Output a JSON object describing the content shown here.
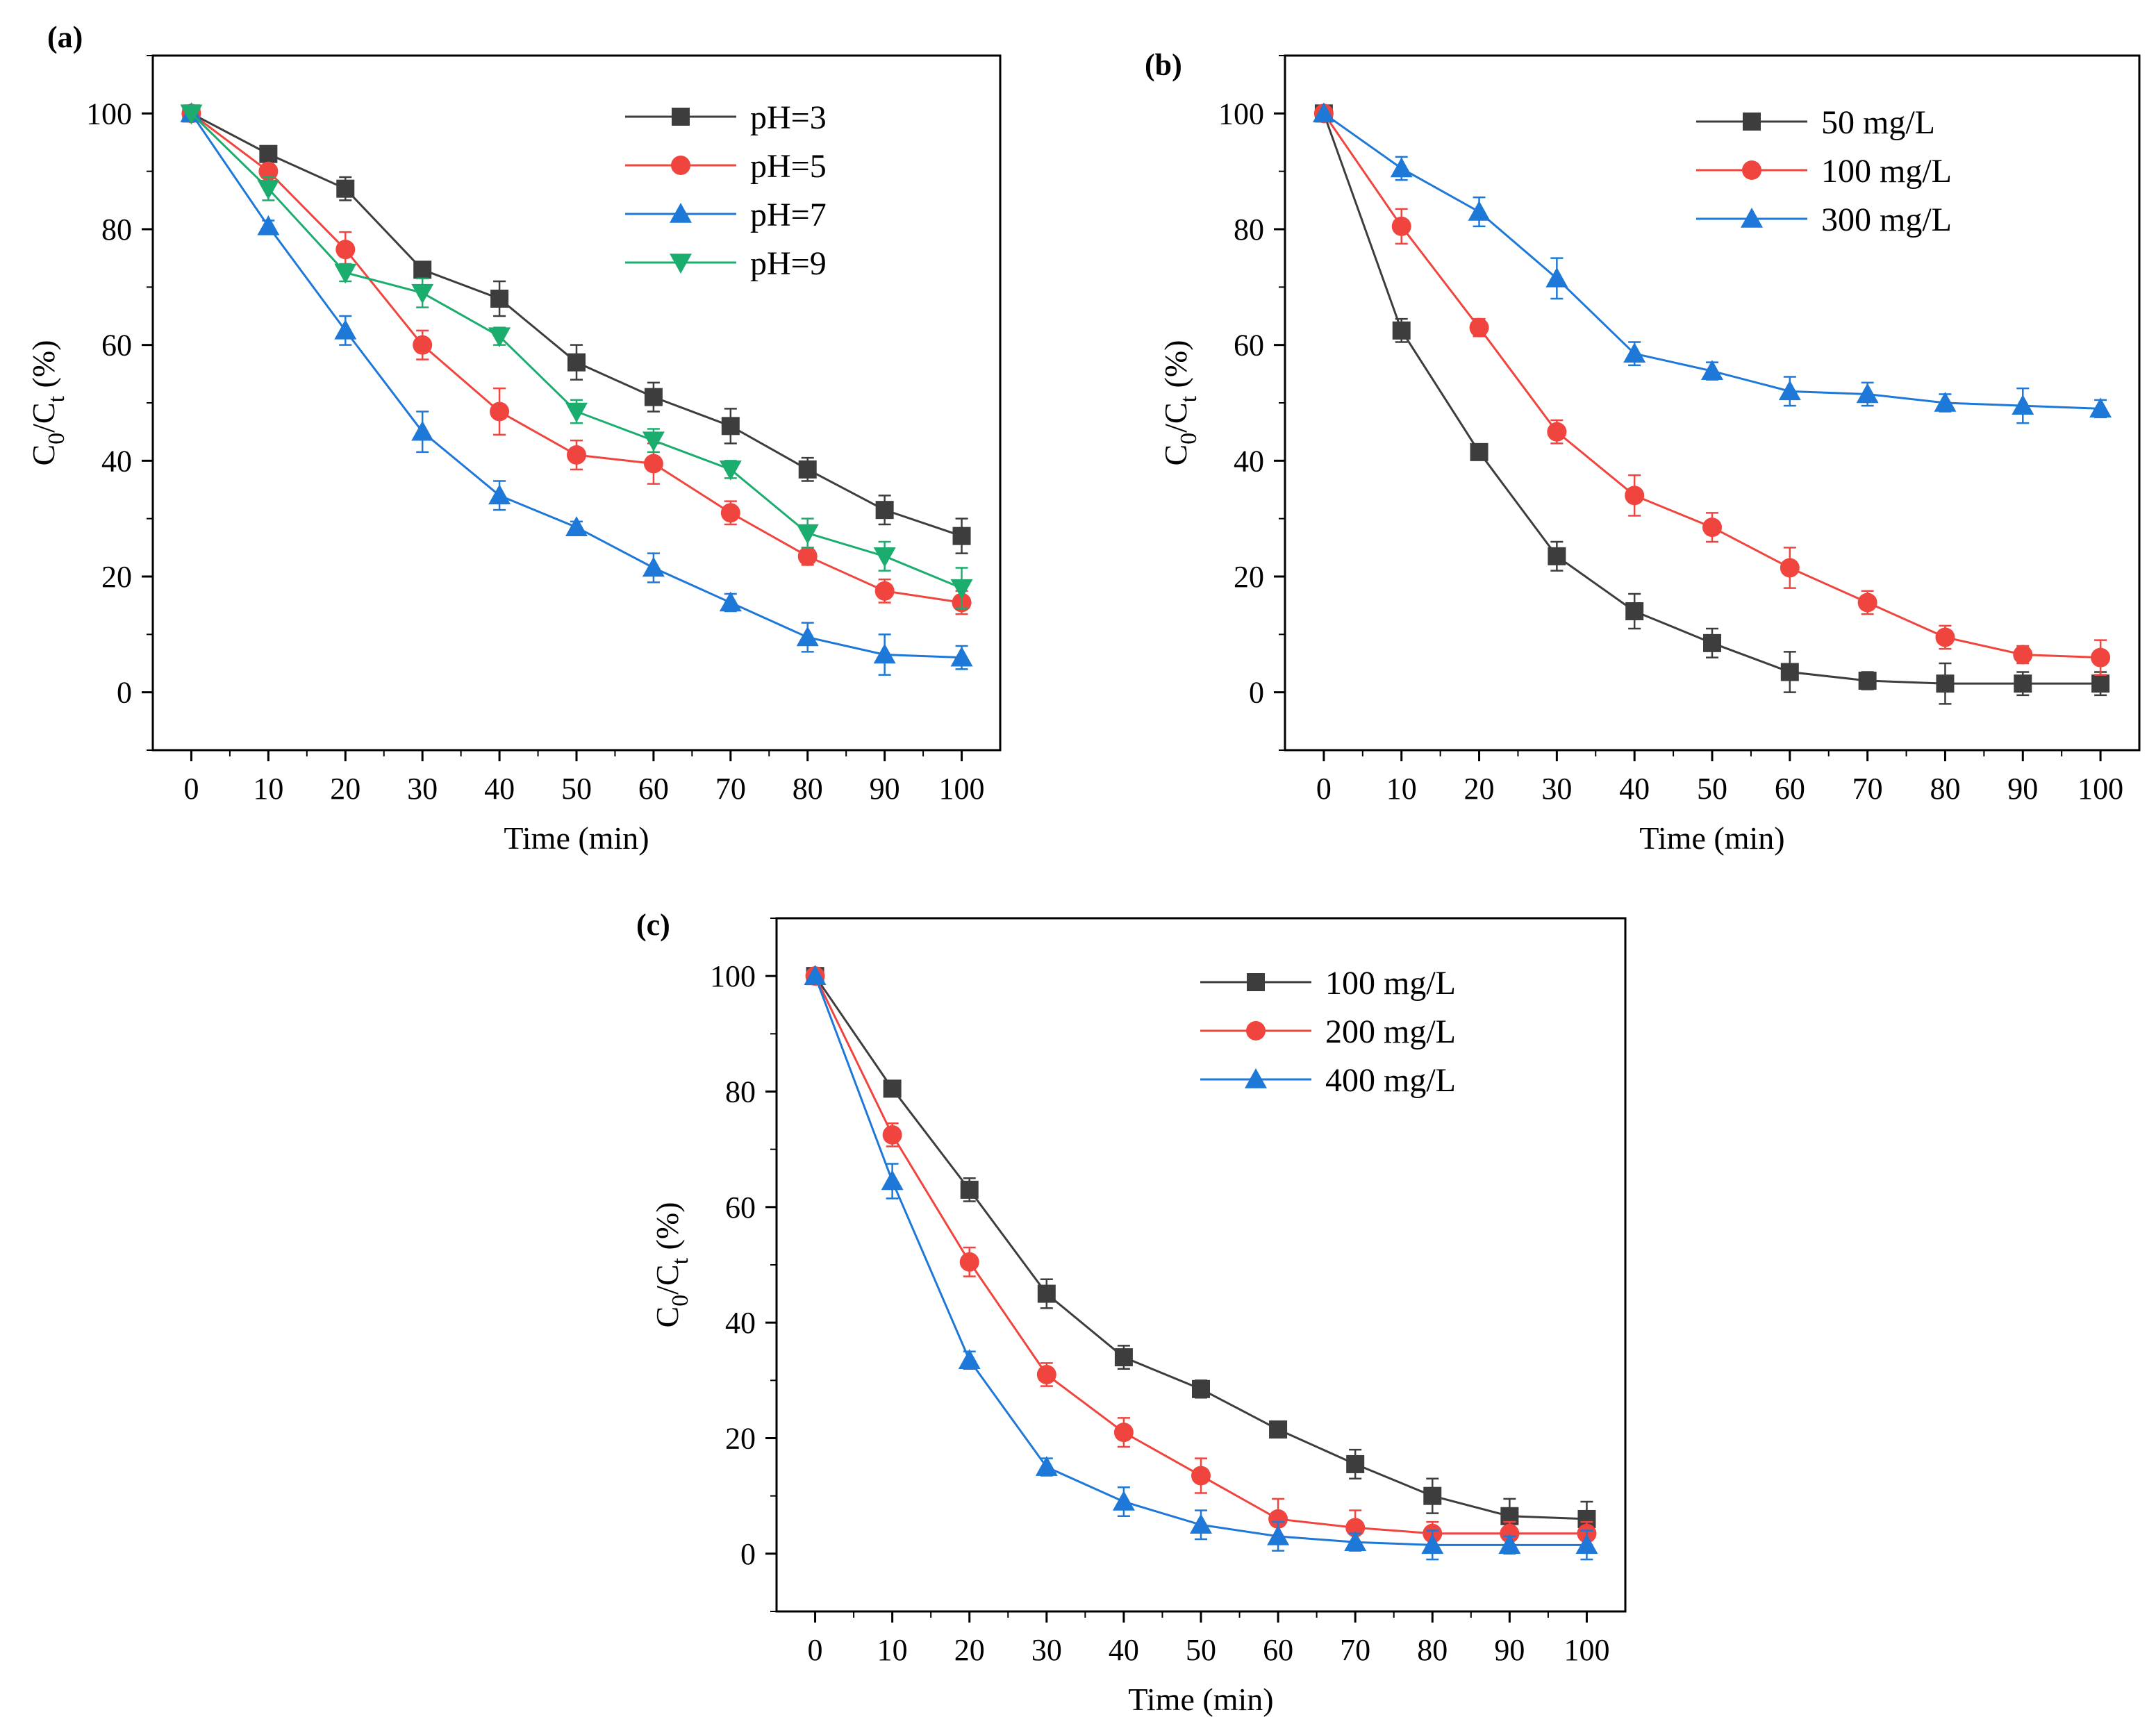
{
  "colors": {
    "black": "#3d3d3d",
    "red": "#f0443e",
    "blue": "#1e78d7",
    "green": "#1bad6e"
  },
  "chart_data": [
    {
      "panel_label": "(a)",
      "type": "line",
      "xlabel": "Time (min)",
      "ylabel_main": "C",
      "ylabel_sub1": "0",
      "ylabel_mid": "/C",
      "ylabel_sub2": "t",
      "ylabel_tail": " (%)",
      "x": [
        0,
        10,
        20,
        30,
        40,
        50,
        60,
        70,
        80,
        90,
        100
      ],
      "xlim": [
        -5,
        105
      ],
      "ylim": [
        -10,
        110
      ],
      "xticks": [
        "0",
        "10",
        "20",
        "30",
        "40",
        "50",
        "60",
        "70",
        "80",
        "90",
        "100"
      ],
      "yticks": [
        "0",
        "20",
        "40",
        "60",
        "80",
        "100"
      ],
      "legend_position": "top-right",
      "series": [
        {
          "name": "pH=3",
          "color": "black",
          "marker": "square",
          "values": [
            100,
            93,
            87,
            73,
            68,
            57,
            51,
            46,
            38.5,
            31.5,
            27
          ],
          "errors": [
            0,
            1,
            2,
            1,
            3,
            3,
            2.5,
            3,
            2,
            2.5,
            3
          ]
        },
        {
          "name": "pH=5",
          "color": "red",
          "marker": "circle",
          "values": [
            100,
            90,
            76.5,
            60,
            48.5,
            41,
            39.5,
            31,
            23.5,
            17.5,
            15.5
          ],
          "errors": [
            0,
            1,
            3,
            2.5,
            4,
            2.5,
            3.5,
            2,
            1.5,
            2,
            2
          ]
        },
        {
          "name": "pH=7",
          "color": "blue",
          "marker": "triangle-up",
          "values": [
            100,
            80.5,
            62.5,
            45,
            34,
            28.5,
            21.5,
            15.5,
            9.5,
            6.5,
            6
          ],
          "errors": [
            0,
            1,
            2.5,
            3.5,
            2.5,
            1,
            2.5,
            1.5,
            2.5,
            3.5,
            2
          ]
        },
        {
          "name": "pH=9",
          "color": "green",
          "marker": "triangle-down",
          "values": [
            100,
            87,
            72.5,
            69,
            61.5,
            48.5,
            43.5,
            38.5,
            27.5,
            23.5,
            18
          ],
          "errors": [
            0,
            2,
            1.5,
            2.5,
            1.5,
            2,
            2,
            1.5,
            2.5,
            2.5,
            3.5
          ]
        }
      ]
    },
    {
      "panel_label": "(b)",
      "type": "line",
      "xlabel": "Time (min)",
      "ylabel_main": "C",
      "ylabel_sub1": "0",
      "ylabel_mid": "/C",
      "ylabel_sub2": "t",
      "ylabel_tail": " (%)",
      "x": [
        0,
        10,
        20,
        30,
        40,
        50,
        60,
        70,
        80,
        90,
        100
      ],
      "xlim": [
        -5,
        105
      ],
      "ylim": [
        -10,
        110
      ],
      "xticks": [
        "0",
        "10",
        "20",
        "30",
        "40",
        "50",
        "60",
        "70",
        "80",
        "90",
        "100"
      ],
      "yticks": [
        "0",
        "20",
        "40",
        "60",
        "80",
        "100"
      ],
      "legend_position": "top-right",
      "series": [
        {
          "name": "50 mg/L",
          "color": "black",
          "marker": "square",
          "values": [
            100,
            62.5,
            41.5,
            23.5,
            14,
            8.5,
            3.5,
            2,
            1.5,
            1.5,
            1.5
          ],
          "errors": [
            0,
            2,
            1,
            2.5,
            3,
            2.5,
            3.5,
            1.5,
            3.5,
            2,
            2
          ]
        },
        {
          "name": "100 mg/L",
          "color": "red",
          "marker": "circle",
          "values": [
            100,
            80.5,
            63,
            45,
            34,
            28.5,
            21.5,
            15.5,
            9.5,
            6.5,
            6
          ],
          "errors": [
            0,
            3,
            1.5,
            2,
            3.5,
            2.5,
            3.5,
            2,
            2,
            1.5,
            3
          ]
        },
        {
          "name": "300 mg/L",
          "color": "blue",
          "marker": "triangle-up",
          "values": [
            100,
            90.5,
            83,
            71.5,
            58.5,
            55.5,
            52,
            51.5,
            50,
            49.5,
            49
          ],
          "errors": [
            0,
            2,
            2.5,
            3.5,
            2,
            1.5,
            2.5,
            2,
            1.5,
            3,
            1.5
          ]
        }
      ]
    },
    {
      "panel_label": "(c)",
      "type": "line",
      "xlabel": "Time (min)",
      "ylabel_main": "C",
      "ylabel_sub1": "0",
      "ylabel_mid": "/C",
      "ylabel_sub2": "t",
      "ylabel_tail": " (%)",
      "x": [
        0,
        10,
        20,
        30,
        40,
        50,
        60,
        70,
        80,
        90,
        100
      ],
      "xlim": [
        -5,
        105
      ],
      "ylim": [
        -10,
        110
      ],
      "xticks": [
        "0",
        "10",
        "20",
        "30",
        "40",
        "50",
        "60",
        "70",
        "80",
        "90",
        "100"
      ],
      "yticks": [
        "0",
        "20",
        "40",
        "60",
        "80",
        "100"
      ],
      "legend_position": "top-right",
      "series": [
        {
          "name": "100 mg/L",
          "color": "black",
          "marker": "square",
          "values": [
            100,
            80.5,
            63,
            45,
            34,
            28.5,
            21.5,
            15.5,
            10,
            6.5,
            6
          ],
          "errors": [
            0,
            1,
            2,
            2.5,
            2,
            1.5,
            1,
            2.5,
            3,
            3,
            3
          ]
        },
        {
          "name": "200 mg/L",
          "color": "red",
          "marker": "circle",
          "values": [
            100,
            72.5,
            50.5,
            31,
            21,
            13.5,
            6,
            4.5,
            3.5,
            3.5,
            3.5
          ],
          "errors": [
            0,
            2,
            2.5,
            2,
            2.5,
            3,
            3.5,
            3,
            2,
            2,
            2
          ]
        },
        {
          "name": "400 mg/L",
          "color": "blue",
          "marker": "triangle-up",
          "values": [
            100,
            64.5,
            33.5,
            15,
            9,
            5,
            3,
            2,
            1.5,
            1.5,
            1.5
          ],
          "errors": [
            0,
            3,
            1.5,
            1.5,
            2.5,
            2.5,
            2.5,
            1.5,
            2.5,
            1.5,
            2.5
          ]
        }
      ]
    }
  ]
}
